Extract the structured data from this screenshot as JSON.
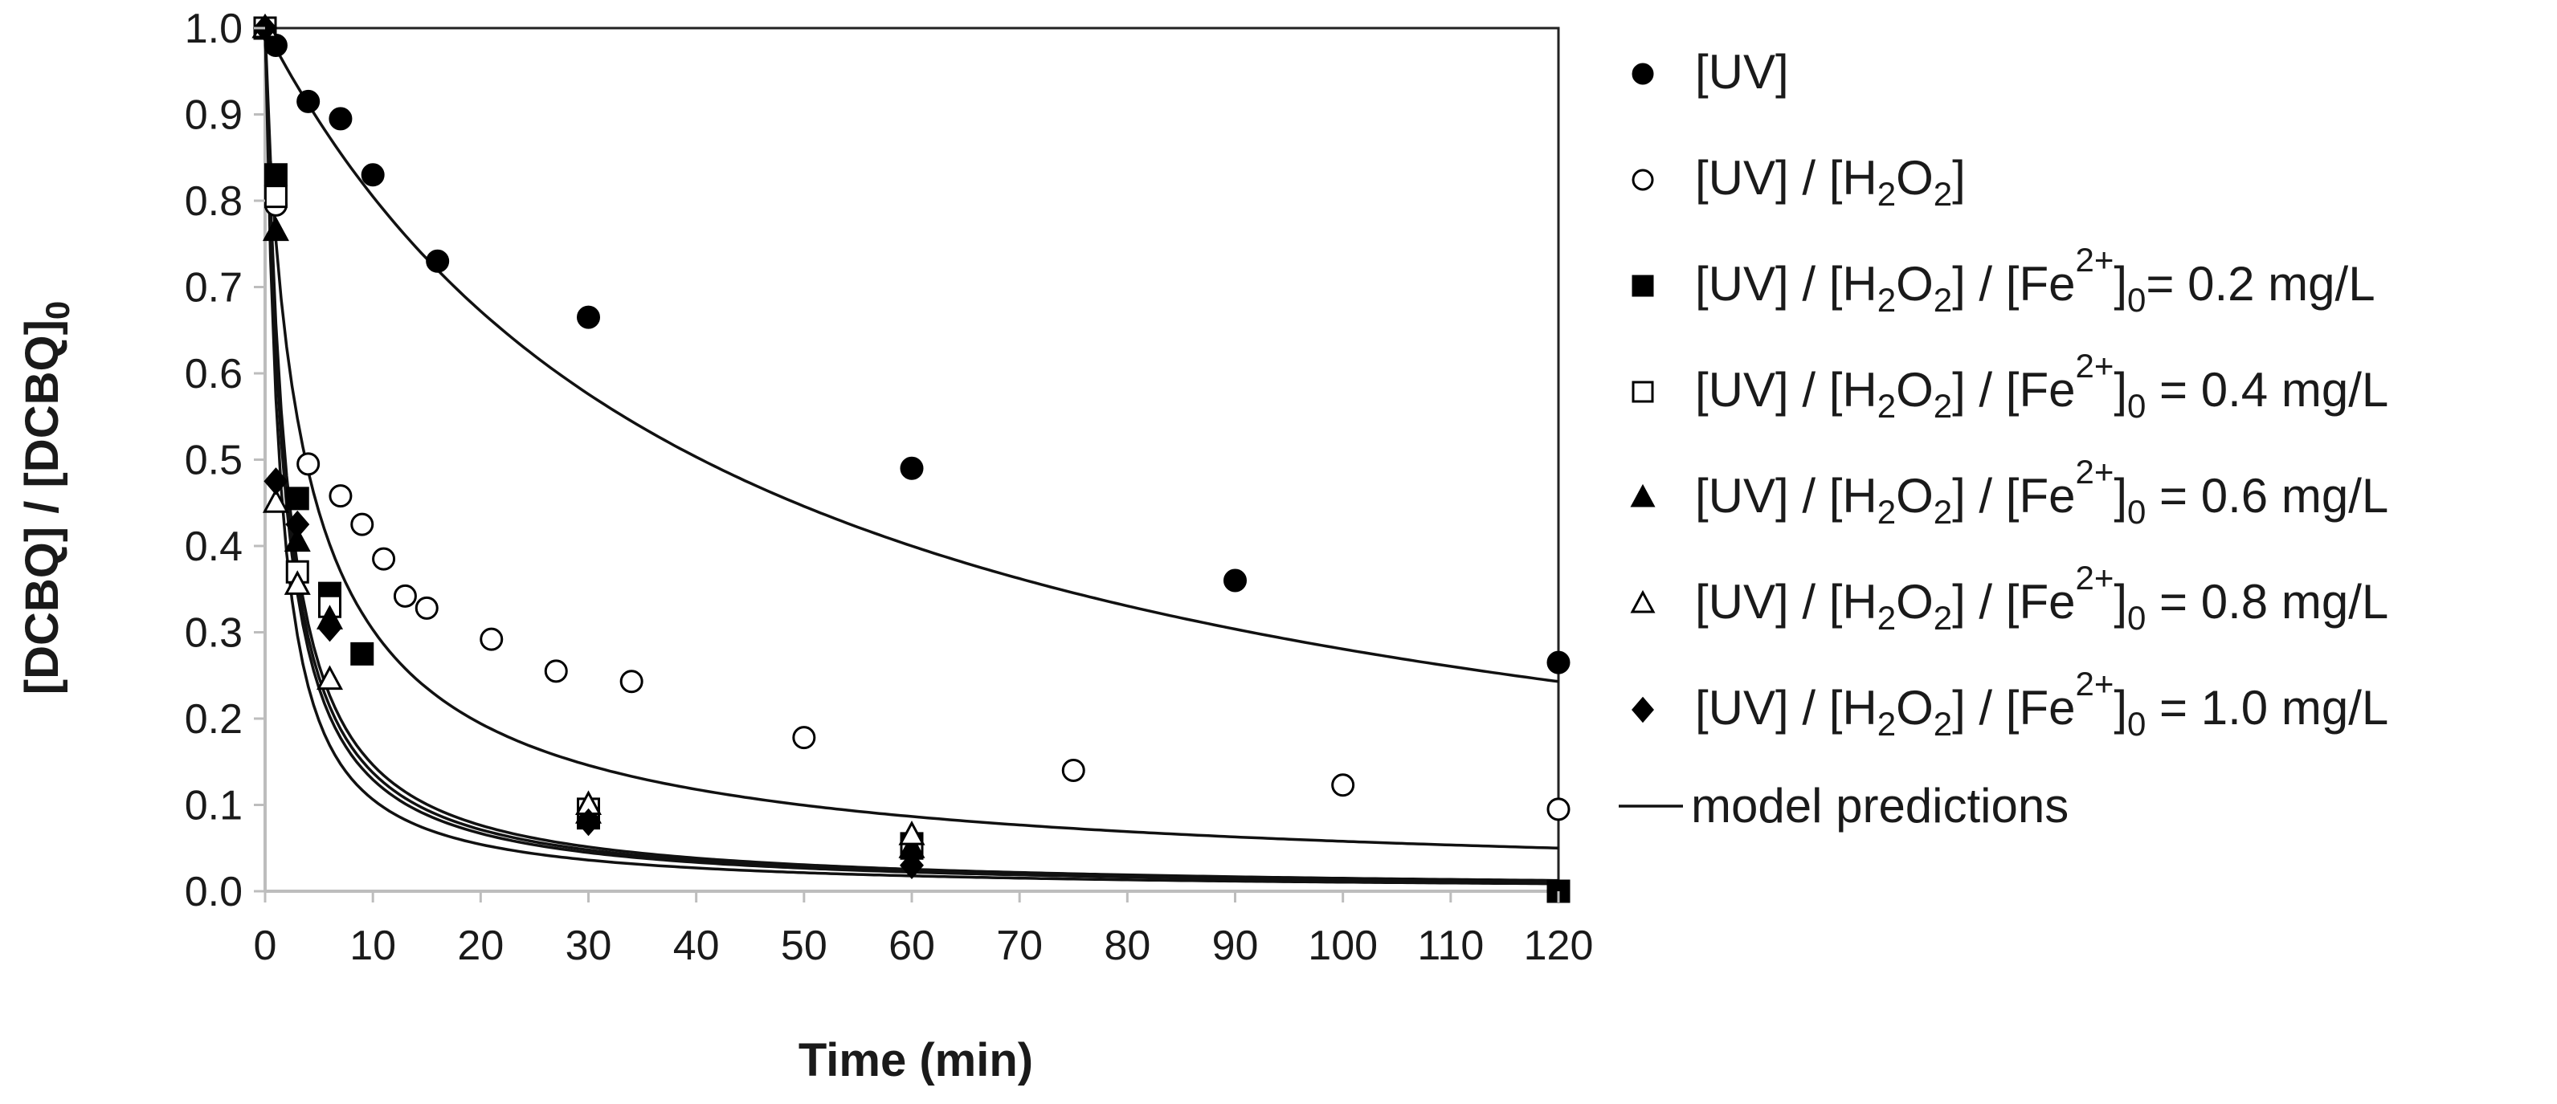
{
  "chart_data": {
    "type": "scatter",
    "title": "",
    "xlabel": "Time (min)",
    "ylabel": "[DCBQ] / [DCBQ]0",
    "xlim": [
      0,
      120
    ],
    "ylim": [
      0,
      1.0
    ],
    "x_ticks": [
      "0",
      "10",
      "20",
      "30",
      "40",
      "50",
      "60",
      "70",
      "80",
      "90",
      "100",
      "110",
      "120"
    ],
    "y_ticks": [
      "0.0",
      "0.1",
      "0.2",
      "0.3",
      "0.4",
      "0.5",
      "0.6",
      "0.7",
      "0.8",
      "0.9",
      "1.0"
    ],
    "legend_position": "right",
    "series": [
      {
        "name": "UV",
        "marker": "filled-circle",
        "label_parts": [
          "[UV]"
        ],
        "points": [
          [
            0,
            1.0
          ],
          [
            1,
            0.98
          ],
          [
            4,
            0.915
          ],
          [
            7,
            0.895
          ],
          [
            10,
            0.83
          ],
          [
            16,
            0.73
          ],
          [
            30,
            0.665
          ],
          [
            60,
            0.49
          ],
          [
            90,
            0.36
          ],
          [
            120,
            0.265
          ]
        ]
      },
      {
        "name": "UV/H2O2",
        "marker": "open-circle",
        "label_parts": [
          "[UV] / [H",
          "2",
          "O",
          "2",
          "]"
        ],
        "points": [
          [
            0,
            1.0
          ],
          [
            1,
            0.795
          ],
          [
            4,
            0.495
          ],
          [
            7,
            0.458
          ],
          [
            9,
            0.425
          ],
          [
            11,
            0.385
          ],
          [
            13,
            0.342
          ],
          [
            15,
            0.328
          ],
          [
            21,
            0.292
          ],
          [
            27,
            0.255
          ],
          [
            34,
            0.243
          ],
          [
            50,
            0.178
          ],
          [
            75,
            0.14
          ],
          [
            100,
            0.123
          ],
          [
            120,
            0.095
          ]
        ]
      },
      {
        "name": "Fe 0.2",
        "marker": "filled-square",
        "label_parts": [
          "[UV] / [H",
          "2",
          "O",
          "2",
          "] / [Fe",
          "2+",
          "]",
          "0",
          "= 0.2 mg/L"
        ],
        "points": [
          [
            0,
            1.0
          ],
          [
            1,
            0.83
          ],
          [
            3,
            0.455
          ],
          [
            6,
            0.345
          ],
          [
            9,
            0.275
          ],
          [
            30,
            0.085
          ],
          [
            60,
            0.055
          ],
          [
            120,
            0.0
          ]
        ]
      },
      {
        "name": "Fe 0.4",
        "marker": "open-square",
        "label_parts": [
          "[UV] / [H",
          "2",
          "O",
          "2",
          "] / [Fe",
          "2+",
          "]",
          "0",
          " = 0.4 mg/L"
        ],
        "points": [
          [
            0,
            1.0
          ],
          [
            1,
            0.805
          ],
          [
            3,
            0.37
          ],
          [
            6,
            0.33
          ],
          [
            30,
            0.095
          ],
          [
            60,
            0.05
          ]
        ]
      },
      {
        "name": "Fe 0.6",
        "marker": "filled-triangle",
        "label_parts": [
          "[UV] / [H",
          "2",
          "O",
          "2",
          "] / [Fe",
          "2+",
          "]",
          "0",
          " = 0.6 mg/L"
        ],
        "points": [
          [
            0,
            1.0
          ],
          [
            1,
            0.765
          ],
          [
            3,
            0.405
          ],
          [
            6,
            0.315
          ],
          [
            30,
            0.09
          ],
          [
            60,
            0.05
          ]
        ]
      },
      {
        "name": "Fe 0.8",
        "marker": "open-triangle",
        "label_parts": [
          "[UV] / [H",
          "2",
          "O",
          "2",
          "] / [Fe",
          "2+",
          "]",
          "0",
          " = 0.8 mg/L"
        ],
        "points": [
          [
            0,
            1.0
          ],
          [
            1,
            0.45
          ],
          [
            3,
            0.355
          ],
          [
            6,
            0.245
          ],
          [
            30,
            0.1
          ],
          [
            60,
            0.065
          ]
        ]
      },
      {
        "name": "Fe 1.0",
        "marker": "filled-diamond",
        "label_parts": [
          "[UV] / [H",
          "2",
          "O",
          "2",
          "] / [Fe",
          "2+",
          "]",
          "0",
          " = 1.0 mg/L"
        ],
        "points": [
          [
            0,
            1.0
          ],
          [
            1,
            0.475
          ],
          [
            3,
            0.425
          ],
          [
            6,
            0.305
          ],
          [
            30,
            0.08
          ],
          [
            60,
            0.03
          ]
        ]
      }
    ],
    "model_curves": [
      {
        "name": "model UV",
        "k": 0.031,
        "a": 1,
        "c": 0.0
      },
      {
        "name": "model UV/H2O2",
        "k": 0.325,
        "a": 0.6,
        "c": 0.0
      },
      {
        "name": "model Fe a",
        "k": 0.52,
        "a": 0.97,
        "c": 0.0
      },
      {
        "name": "model Fe b",
        "k": 0.56,
        "a": 0.97,
        "c": 0.0
      },
      {
        "name": "model Fe c",
        "k": 0.6,
        "a": 0.97,
        "c": 0.0
      },
      {
        "name": "model Fe d",
        "k": 0.75,
        "a": 0.97,
        "c": 0.0
      }
    ],
    "model_legend_label": "model predictions"
  }
}
